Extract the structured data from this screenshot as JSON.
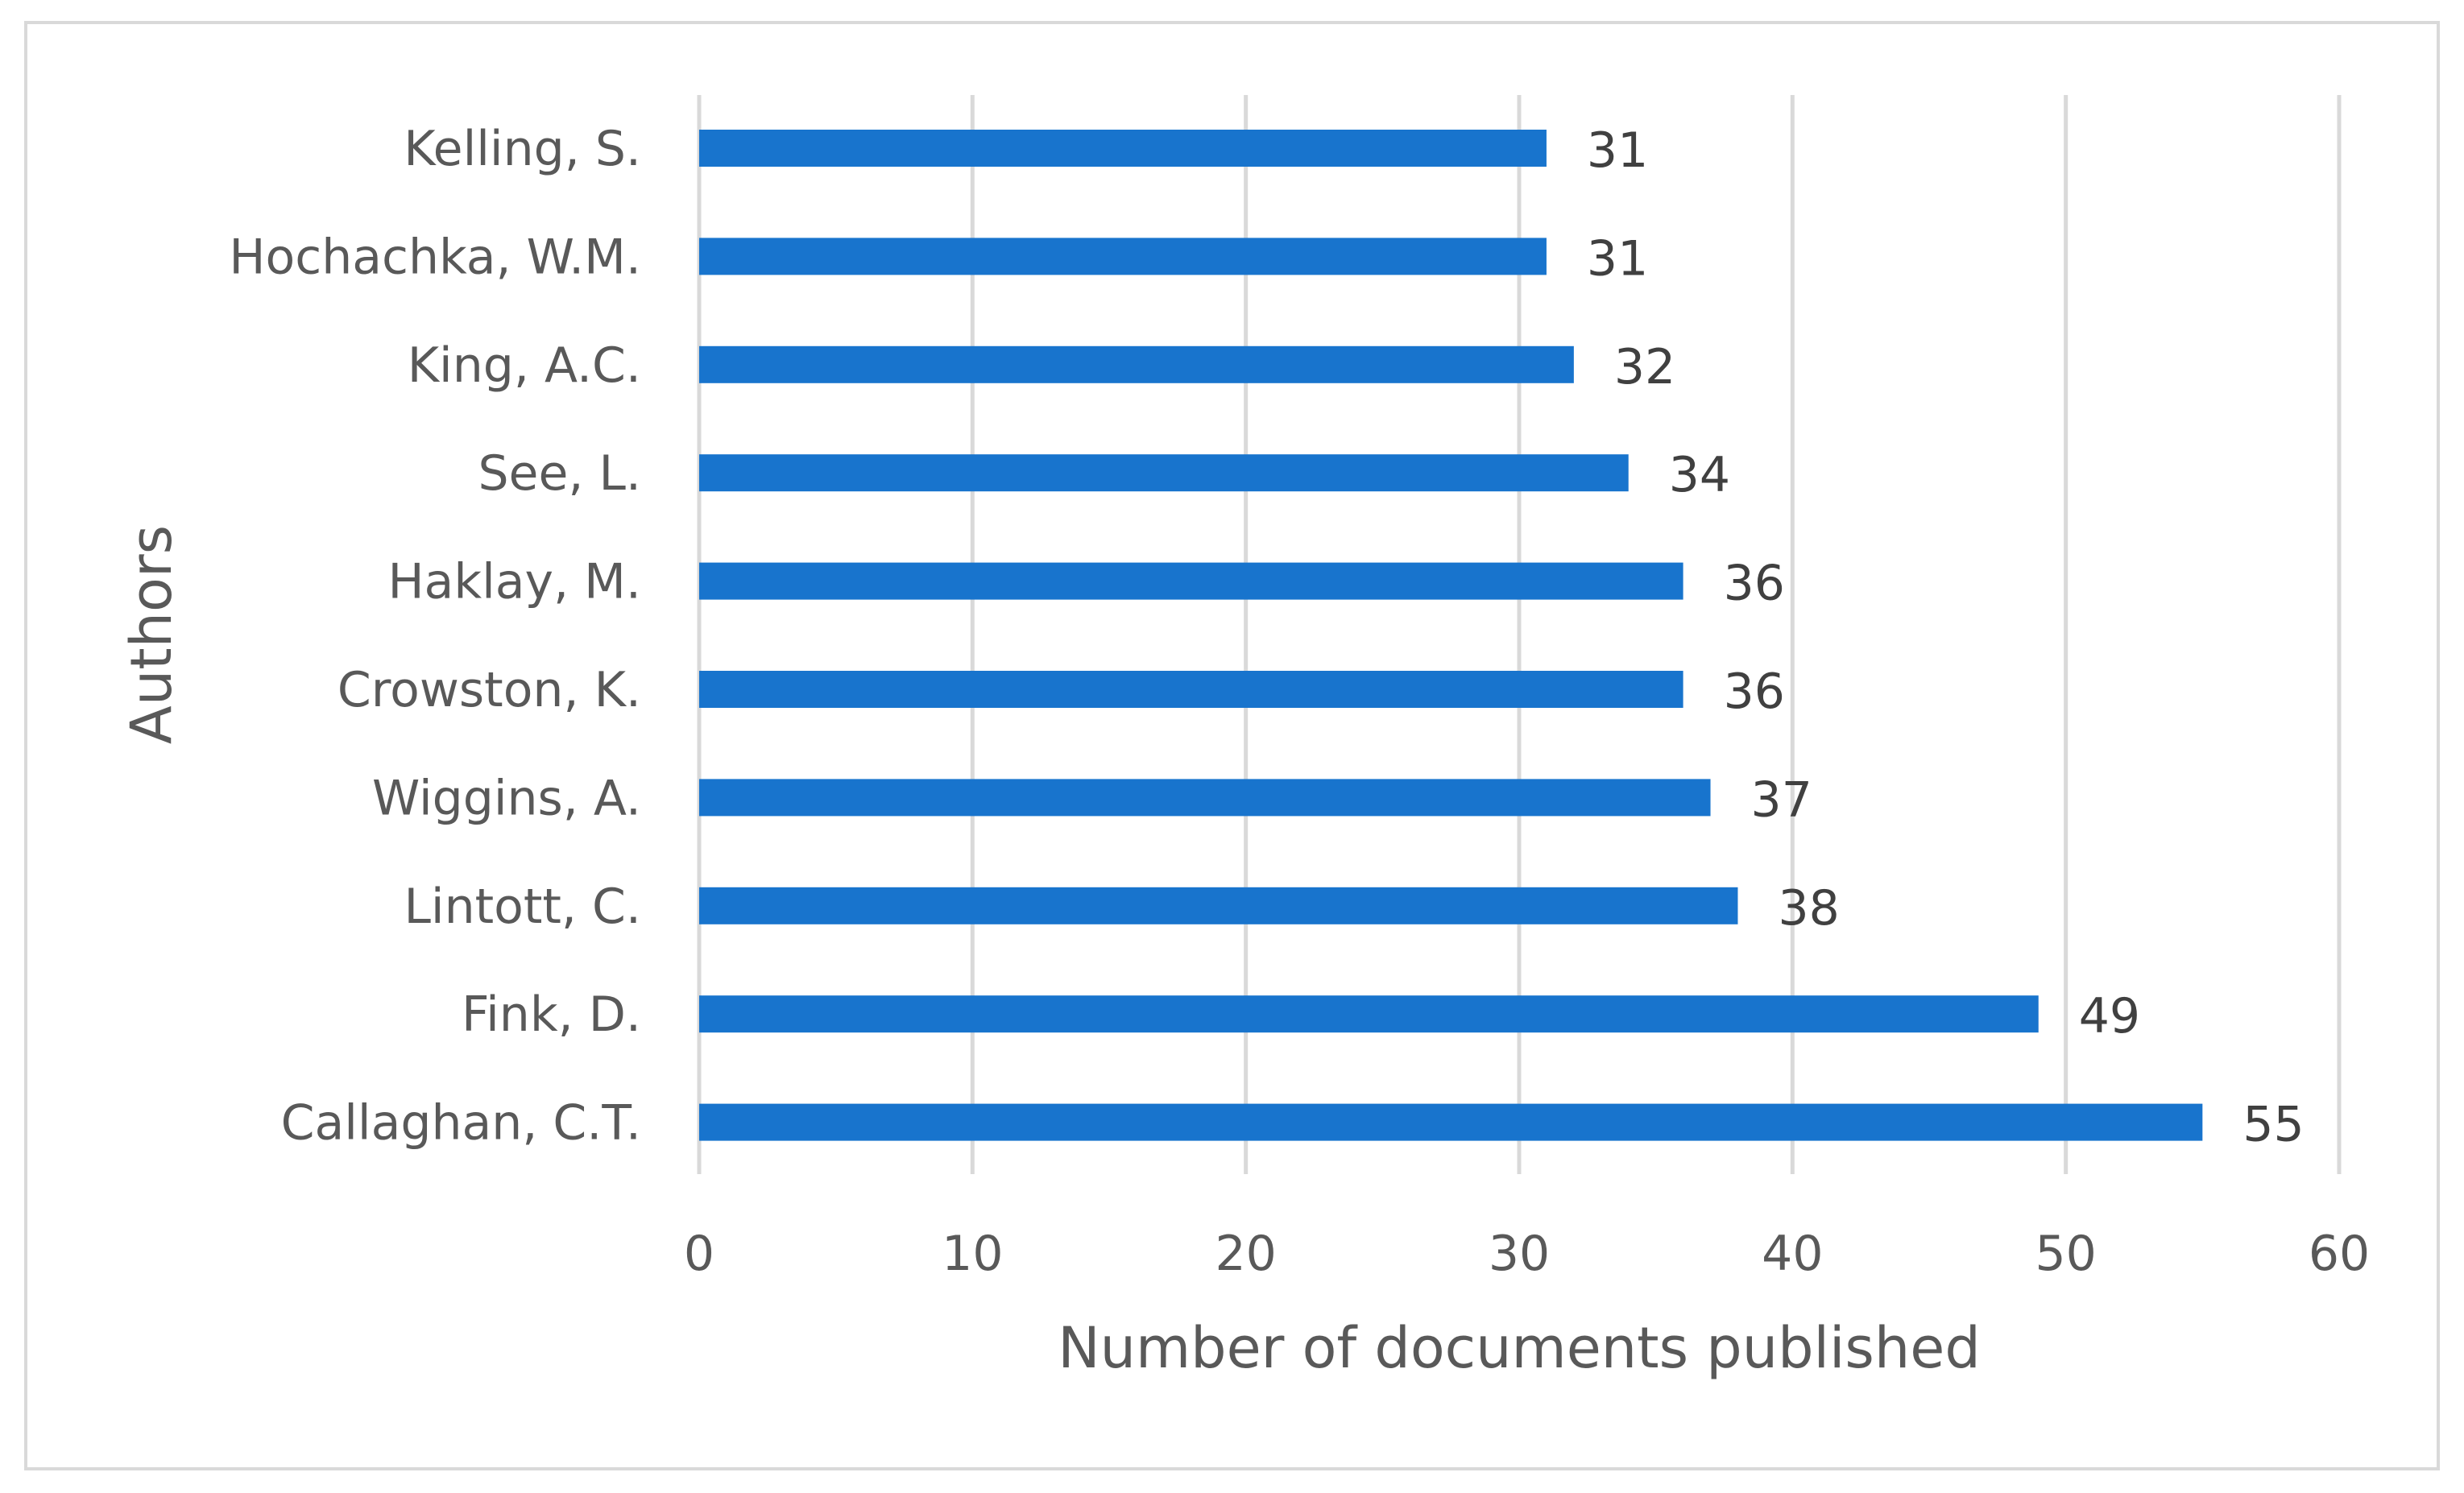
{
  "chart_data": {
    "type": "bar",
    "orientation": "horizontal",
    "title": "",
    "xlabel": "Number of documents published",
    "ylabel": "Authors",
    "xlim": [
      0,
      60
    ],
    "x_ticks": [
      0,
      10,
      20,
      30,
      40,
      50,
      60
    ],
    "grid": "vertical",
    "legend": "none",
    "bar_color": "#1874CD",
    "grid_color": "#D9D9D9",
    "categories": [
      "Kelling, S.",
      "Hochachka, W.M.",
      "King, A.C.",
      "See, L.",
      "Haklay, M.",
      "Crowston, K.",
      "Wiggins, A.",
      "Lintott, C.",
      "Fink, D.",
      "Callaghan, C.T."
    ],
    "values": [
      31,
      31,
      32,
      34,
      36,
      36,
      37,
      38,
      49,
      55
    ]
  }
}
